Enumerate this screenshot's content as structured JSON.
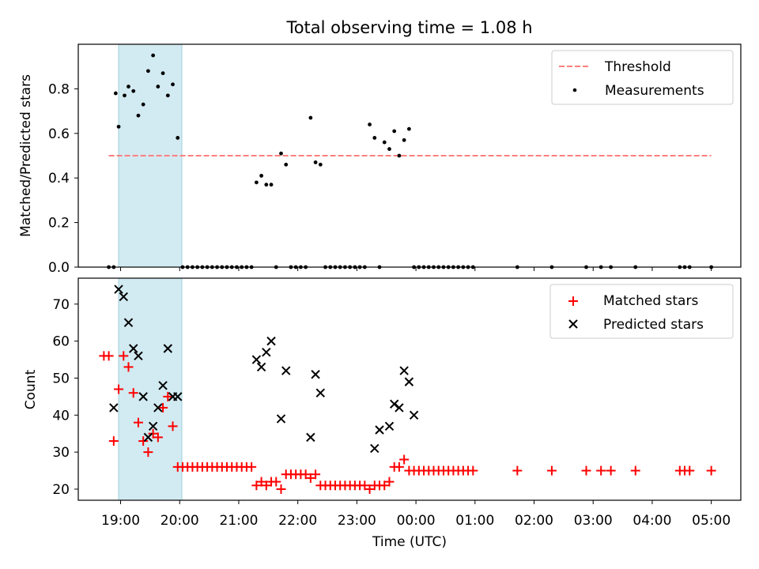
{
  "figure": {
    "title": "Total observing time = 1.08 h"
  },
  "colors": {
    "threshold": "#ff7f7f",
    "measurement": "#000000",
    "matched": "#ff0000",
    "predicted": "#000000",
    "shade": "#add8e6"
  },
  "chart_data": [
    {
      "type": "scatter",
      "title": "Total observing time = 1.08 h",
      "ylabel": "Matched/Predicted stars",
      "xlabel": "",
      "xlim": [
        "18:17",
        "05:30"
      ],
      "ylim": [
        0,
        1.0
      ],
      "yticks": [
        "0.0",
        "0.2",
        "0.4",
        "0.6",
        "0.8"
      ],
      "legend_position": "top-right",
      "shaded_interval": [
        "18:55",
        "19:59"
      ],
      "series": [
        {
          "name": "Threshold",
          "style": "dashed-line",
          "x": [
            "18:48",
            "05:00"
          ],
          "y": [
            0.5,
            0.5
          ]
        },
        {
          "name": "Measurements",
          "style": "dots",
          "x": [
            "18:48",
            "18:53",
            "18:55",
            "18:58",
            "19:04",
            "19:08",
            "19:13",
            "19:18",
            "19:23",
            "19:28",
            "19:33",
            "19:38",
            "19:43",
            "19:48",
            "19:53",
            "19:58",
            "20:03",
            "20:08",
            "20:13",
            "20:18",
            "20:23",
            "20:28",
            "20:33",
            "20:38",
            "20:43",
            "20:48",
            "20:53",
            "20:58",
            "21:03",
            "21:08",
            "21:13",
            "21:18",
            "21:23",
            "21:28",
            "21:33",
            "21:38",
            "21:43",
            "21:48",
            "21:53",
            "21:58",
            "22:03",
            "22:08",
            "22:13",
            "22:18",
            "22:23",
            "22:28",
            "22:33",
            "22:38",
            "22:43",
            "22:48",
            "22:53",
            "22:58",
            "23:03",
            "23:08",
            "23:13",
            "23:18",
            "23:23",
            "23:28",
            "23:33",
            "23:38",
            "23:43",
            "23:48",
            "23:53",
            "23:58",
            "00:03",
            "00:08",
            "00:13",
            "00:18",
            "00:23",
            "00:28",
            "00:33",
            "00:38",
            "00:43",
            "00:48",
            "00:53",
            "00:58",
            "01:43",
            "02:18",
            "02:53",
            "03:08",
            "03:18",
            "03:43",
            "04:28",
            "04:33",
            "04:38",
            "05:00"
          ],
          "y": [
            0,
            0,
            0.78,
            0.63,
            0.77,
            0.81,
            0.79,
            0.68,
            0.73,
            0.88,
            0.95,
            0.81,
            0.87,
            0.77,
            0.82,
            0.58,
            0,
            0,
            0,
            0,
            0,
            0,
            0,
            0,
            0,
            0,
            0,
            0,
            0,
            0,
            0,
            0.38,
            0.41,
            0.37,
            0.37,
            0,
            0.51,
            0.46,
            0,
            0,
            0,
            0,
            0.67,
            0.47,
            0.46,
            0,
            0,
            0,
            0,
            0,
            0,
            0,
            0,
            0,
            0.64,
            0.58,
            0,
            0.56,
            0.53,
            0.61,
            0.5,
            0.57,
            0.62,
            0,
            0,
            0,
            0,
            0,
            0,
            0,
            0,
            0,
            0,
            0,
            0,
            0,
            0,
            0,
            0,
            0,
            0,
            0,
            0,
            0,
            0,
            0
          ]
        }
      ]
    },
    {
      "type": "scatter",
      "xlabel": "Time (UTC)",
      "ylabel": "Count",
      "xlim": [
        "18:17",
        "05:30"
      ],
      "ylim": [
        17,
        77
      ],
      "yticks": [
        "20",
        "30",
        "40",
        "50",
        "60",
        "70"
      ],
      "xticks": [
        "19:00",
        "20:00",
        "21:00",
        "22:00",
        "23:00",
        "00:00",
        "01:00",
        "02:00",
        "03:00",
        "04:00",
        "05:00"
      ],
      "legend_position": "top-right",
      "shaded_interval": [
        "18:55",
        "19:59"
      ],
      "series": [
        {
          "name": "Matched stars",
          "marker": "+",
          "x": [
            "18:43",
            "18:48",
            "18:53",
            "18:58",
            "19:03",
            "19:08",
            "19:13",
            "19:18",
            "19:23",
            "19:28",
            "19:33",
            "19:38",
            "19:43",
            "19:48",
            "19:53",
            "19:58",
            "20:03",
            "20:08",
            "20:13",
            "20:18",
            "20:23",
            "20:28",
            "20:33",
            "20:38",
            "20:43",
            "20:48",
            "20:53",
            "20:58",
            "21:03",
            "21:08",
            "21:13",
            "21:18",
            "21:23",
            "21:28",
            "21:33",
            "21:38",
            "21:43",
            "21:48",
            "21:53",
            "21:58",
            "22:03",
            "22:08",
            "22:13",
            "22:18",
            "22:23",
            "22:28",
            "22:33",
            "22:38",
            "22:43",
            "22:48",
            "22:53",
            "22:58",
            "23:03",
            "23:08",
            "23:13",
            "23:18",
            "23:23",
            "23:28",
            "23:33",
            "23:38",
            "23:43",
            "23:48",
            "23:53",
            "23:58",
            "00:03",
            "00:08",
            "00:13",
            "00:18",
            "00:23",
            "00:28",
            "00:33",
            "00:38",
            "00:43",
            "00:48",
            "00:53",
            "00:58",
            "01:43",
            "02:18",
            "02:53",
            "03:08",
            "03:18",
            "03:43",
            "04:28",
            "04:33",
            "04:38",
            "05:00"
          ],
          "y": [
            56,
            56,
            33,
            47,
            56,
            53,
            46,
            38,
            33,
            30,
            35,
            34,
            42,
            45,
            37,
            26,
            26,
            26,
            26,
            26,
            26,
            26,
            26,
            26,
            26,
            26,
            26,
            26,
            26,
            26,
            26,
            21,
            22,
            21,
            22,
            22,
            20,
            24,
            24,
            24,
            24,
            24,
            23,
            24,
            21,
            21,
            21,
            21,
            21,
            21,
            21,
            21,
            21,
            21,
            20,
            21,
            21,
            21,
            22,
            26,
            26,
            28,
            25,
            25,
            25,
            25,
            25,
            25,
            25,
            25,
            25,
            25,
            25,
            25,
            25,
            25,
            25,
            25,
            25,
            25,
            25,
            25,
            25,
            25,
            25,
            25
          ]
        },
        {
          "name": "Predicted stars",
          "marker": "x",
          "x": [
            "18:53",
            "18:58",
            "19:03",
            "19:08",
            "19:13",
            "19:18",
            "19:23",
            "19:28",
            "19:33",
            "19:38",
            "19:43",
            "19:48",
            "19:53",
            "19:58",
            "21:18",
            "21:23",
            "21:28",
            "21:33",
            "21:43",
            "21:48",
            "22:13",
            "22:18",
            "22:23",
            "23:18",
            "23:23",
            "23:33",
            "23:38",
            "23:43",
            "23:48",
            "23:53",
            "23:58"
          ],
          "y": [
            42,
            74,
            72,
            65,
            58,
            56,
            45,
            34,
            37,
            42,
            48,
            58,
            45,
            45,
            55,
            53,
            57,
            60,
            39,
            52,
            34,
            51,
            46,
            31,
            36,
            37,
            43,
            42,
            52,
            49,
            40
          ]
        }
      ]
    }
  ],
  "legend": {
    "threshold": "Threshold",
    "measurements": "Measurements",
    "matched": "Matched stars",
    "predicted": "Predicted stars"
  }
}
